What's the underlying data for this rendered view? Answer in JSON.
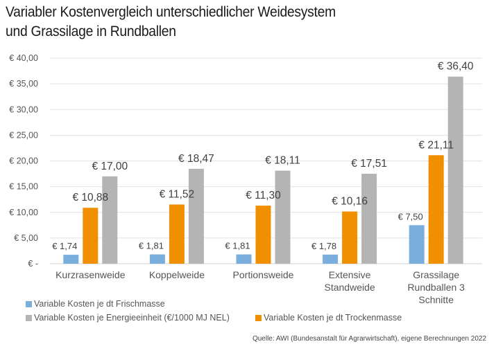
{
  "chart_data": {
    "type": "bar",
    "title": "Variabler Kostenvergleich unterschiedlicher Weidesystem und Grassilage in Rundballen",
    "title_lines": [
      "Variabler Kostenvergleich unterschiedlicher Weidesystem",
      "und Grassilage in Rundballen"
    ],
    "xlabel": "",
    "ylabel": "",
    "ylim": [
      0,
      40
    ],
    "yticks": [
      0,
      5,
      10,
      15,
      20,
      25,
      30,
      35,
      40
    ],
    "ytick_labels": [
      "€ -",
      "€ 5,00",
      "€ 10,00",
      "€ 15,00",
      "€ 20,00",
      "€ 25,00",
      "€ 30,00",
      "€ 35,00",
      "€ 40,00"
    ],
    "grid": true,
    "categories": [
      "Kurzrasenweide",
      "Koppelweide",
      "Portionsweide",
      "Extensive Standweide",
      "Grassilage Rundballen 3 Schnitte"
    ],
    "category_lines": [
      [
        "Kurzrasenweide"
      ],
      [
        "Koppelweide"
      ],
      [
        "Portionsweide"
      ],
      [
        "Extensive",
        "Standweide"
      ],
      [
        "Grassilage",
        "Rundballen 3",
        "Schnitte"
      ]
    ],
    "series": [
      {
        "name": "Variable Kosten je dt Frischmasse",
        "color": "#7aaedc",
        "values": [
          1.74,
          1.81,
          1.81,
          1.78,
          7.5
        ],
        "labels": [
          "€ 1,74",
          "€ 1,81",
          "€ 1,81",
          "€ 1,78",
          "€ 7,50"
        ]
      },
      {
        "name": "Variable Kosten je dt Trockenmasse",
        "color": "#f09000",
        "values": [
          10.88,
          11.52,
          11.3,
          10.16,
          21.11
        ],
        "labels": [
          "€ 10,88",
          "€ 11,52",
          "€ 11,30",
          "€ 10,16",
          "€ 21,11"
        ]
      },
      {
        "name": "Variable Kosten je Energieeinheit (€/1000 MJ NEL)",
        "color": "#b4b4b4",
        "values": [
          17.0,
          18.47,
          18.11,
          17.51,
          36.4
        ],
        "labels": [
          "€ 17,00",
          "€ 18,47",
          "€ 18,11",
          "€ 17,51",
          "€ 36,40"
        ]
      }
    ],
    "legend": "bottom-left",
    "source": "Quelle: AWI (Bundesanstalt für Agrarwirtschaft), eigene Berechnungen 2022"
  }
}
